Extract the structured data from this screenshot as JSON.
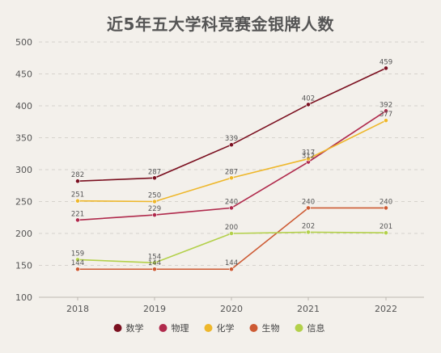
{
  "chart_data": {
    "type": "line",
    "title": "近5年五大学科竞赛金银牌人数",
    "xlabel": "",
    "ylabel": "",
    "categories": [
      "2018",
      "2019",
      "2020",
      "2021",
      "2022"
    ],
    "ylim": [
      100,
      500
    ],
    "yticks": [
      100,
      150,
      200,
      250,
      300,
      350,
      400,
      450,
      500
    ],
    "grid": "horizontal-dashed",
    "legend": "bottom-center",
    "data_labels": true,
    "series": [
      {
        "name": "数学",
        "color": "#7b1020",
        "values": [
          282,
          287,
          339,
          402,
          459
        ]
      },
      {
        "name": "物理",
        "color": "#b02a4c",
        "values": [
          221,
          229,
          240,
          312,
          392
        ]
      },
      {
        "name": "化学",
        "color": "#eeb72b",
        "values": [
          251,
          250,
          287,
          317,
          377
        ]
      },
      {
        "name": "生物",
        "color": "#cd5a33",
        "values": [
          144,
          144,
          144,
          240,
          240
        ]
      },
      {
        "name": "信息",
        "color": "#b3d04a",
        "values": [
          159,
          154,
          200,
          202,
          201
        ]
      }
    ]
  }
}
